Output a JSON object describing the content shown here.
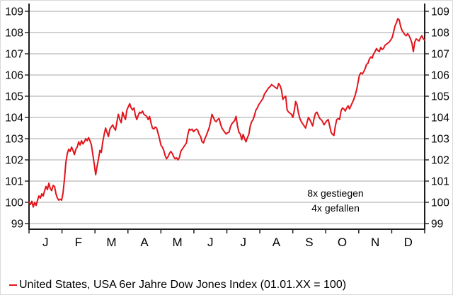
{
  "chart_data": {
    "type": "line",
    "title": "",
    "x_axis": {
      "tick_labels": [
        "J",
        "F",
        "M",
        "A",
        "M",
        "J",
        "J",
        "A",
        "S",
        "O",
        "N",
        "D"
      ],
      "note": "calendar months of one year, daily index series"
    },
    "y_axis": {
      "min": 99,
      "max": 109,
      "step": 1,
      "labels_on_both_sides": true
    },
    "grid": true,
    "legend_position": "bottom-left",
    "colors": {
      "line": "#e2141b",
      "grid": "#c3c3c3",
      "axis": "#1d1d1d",
      "text": "#000000"
    },
    "annotations": [
      {
        "text": "8x gestiegen"
      },
      {
        "text": "4x gefallen"
      }
    ],
    "series": [
      {
        "name": "United States, USA 6er Jahre Dow Jones Index (01.01.XX = 100)",
        "color": "#e2141b",
        "start_value": 100.0,
        "end_value": 107.65,
        "peak_value": 108.65,
        "low_value": 99.78,
        "sampling": "evenly spaced across the year",
        "values": [
          100.0,
          99.9,
          100.05,
          99.78,
          100.0,
          99.85,
          100.1,
          100.3,
          100.2,
          100.4,
          100.3,
          100.55,
          100.75,
          100.6,
          100.9,
          100.65,
          100.55,
          100.8,
          100.75,
          100.4,
          100.2,
          100.1,
          100.15,
          100.1,
          100.45,
          101.1,
          101.9,
          102.3,
          102.5,
          102.4,
          102.6,
          102.45,
          102.25,
          102.5,
          102.6,
          102.85,
          102.7,
          102.9,
          102.75,
          102.85,
          103.0,
          102.9,
          103.05,
          102.9,
          102.7,
          102.25,
          101.8,
          101.3,
          101.7,
          102.05,
          102.45,
          102.35,
          102.85,
          103.2,
          103.5,
          103.3,
          103.1,
          103.45,
          103.55,
          103.65,
          103.5,
          103.4,
          103.8,
          104.15,
          103.9,
          103.75,
          104.25,
          104.05,
          103.9,
          104.35,
          104.5,
          104.65,
          104.45,
          104.35,
          104.45,
          104.1,
          103.9,
          104.1,
          104.25,
          104.2,
          104.3,
          104.15,
          104.1,
          104.05,
          103.9,
          104.05,
          103.75,
          103.5,
          103.45,
          103.55,
          103.5,
          103.25,
          103.0,
          102.7,
          102.6,
          102.45,
          102.2,
          102.05,
          102.15,
          102.3,
          102.4,
          102.3,
          102.15,
          102.05,
          102.1,
          102.0,
          102.1,
          102.4,
          102.5,
          102.6,
          102.7,
          102.8,
          103.2,
          103.45,
          103.4,
          103.45,
          103.33,
          103.4,
          103.45,
          103.4,
          103.2,
          103.1,
          102.85,
          102.8,
          103.0,
          103.15,
          103.33,
          103.5,
          103.8,
          104.15,
          104.0,
          103.85,
          103.8,
          103.9,
          103.95,
          103.7,
          103.5,
          103.4,
          103.3,
          103.22,
          103.28,
          103.3,
          103.55,
          103.7,
          103.78,
          103.85,
          104.05,
          103.6,
          103.3,
          103.22,
          102.95,
          103.2,
          103.0,
          102.85,
          103.05,
          103.2,
          103.6,
          103.8,
          103.9,
          104.1,
          104.35,
          104.45,
          104.6,
          104.7,
          104.8,
          104.9,
          105.1,
          105.2,
          105.3,
          105.4,
          105.45,
          105.55,
          105.5,
          105.45,
          105.4,
          105.35,
          105.6,
          105.5,
          105.3,
          104.85,
          104.95,
          105.0,
          104.35,
          104.25,
          104.2,
          104.15,
          104.0,
          104.3,
          104.75,
          104.6,
          104.2,
          103.95,
          103.8,
          103.7,
          103.6,
          103.5,
          103.75,
          104.0,
          103.9,
          103.75,
          103.6,
          103.95,
          104.2,
          104.25,
          104.1,
          103.95,
          103.9,
          103.8,
          103.65,
          103.75,
          103.85,
          103.9,
          103.6,
          103.3,
          103.2,
          103.15,
          103.6,
          103.9,
          103.95,
          103.9,
          104.3,
          104.45,
          104.4,
          104.3,
          104.45,
          104.55,
          104.4,
          104.55,
          104.7,
          104.85,
          105.05,
          105.3,
          105.65,
          106.0,
          106.1,
          106.05,
          106.15,
          106.3,
          106.5,
          106.55,
          106.75,
          106.85,
          106.8,
          107.0,
          107.1,
          107.25,
          107.15,
          107.1,
          107.3,
          107.2,
          107.25,
          107.4,
          107.45,
          107.5,
          107.55,
          107.65,
          107.75,
          108.0,
          108.3,
          108.45,
          108.65,
          108.6,
          108.3,
          108.1,
          108.0,
          107.9,
          107.85,
          107.95,
          107.85,
          107.7,
          107.5,
          107.1,
          107.55,
          107.7,
          107.65,
          107.6,
          107.75,
          107.85,
          107.7,
          107.65
        ]
      }
    ]
  },
  "legend": {
    "label": "United States, USA 6er Jahre Dow Jones Index (01.01.XX = 100)"
  }
}
